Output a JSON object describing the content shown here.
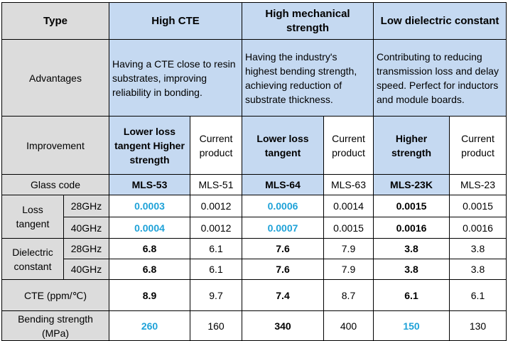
{
  "header": {
    "type": "Type",
    "high_cte": "High CTE",
    "high_mech": "High mechanical strength",
    "low_dielectric": "Low dielectric constant"
  },
  "advantages": {
    "label": "Advantages",
    "high_cte": "Having a CTE close to resin substrates, improving reliability in bonding.",
    "high_mech": "Having the industry's highest bending strength, achieving reduction of substrate thickness.",
    "low_dielectric": "Contributing to reducing transmission loss and delay speed. Perfect for inductors and module boards."
  },
  "improvement": {
    "label": "Improvement",
    "high_cte": "Lower loss tangent Higher strength",
    "high_mech": "Lower loss tangent",
    "low_dielectric": "Higher strength",
    "current": "Current product"
  },
  "glass_code": {
    "label": "Glass code",
    "codes": [
      "MLS-53",
      "MLS-51",
      "MLS-64",
      "MLS-63",
      "MLS-23K",
      "MLS-23"
    ]
  },
  "loss_tangent": {
    "label": "Loss tangent",
    "rows": [
      {
        "freq": "28GHz",
        "values": [
          "0.0003",
          "0.0012",
          "0.0006",
          "0.0014",
          "0.0015",
          "0.0015"
        ]
      },
      {
        "freq": "40GHz",
        "values": [
          "0.0004",
          "0.0012",
          "0.0007",
          "0.0015",
          "0.0016",
          "0.0016"
        ]
      }
    ]
  },
  "dielectric_constant": {
    "label": "Dielectric constant",
    "rows": [
      {
        "freq": "28GHz",
        "values": [
          "6.8",
          "6.1",
          "7.6",
          "7.9",
          "3.8",
          "3.8"
        ]
      },
      {
        "freq": "40GHz",
        "values": [
          "6.8",
          "6.1",
          "7.6",
          "7.9",
          "3.8",
          "3.8"
        ]
      }
    ]
  },
  "cte": {
    "label": "CTE (ppm/℃)",
    "values": [
      "8.9",
      "9.7",
      "7.4",
      "8.7",
      "6.1",
      "6.1"
    ]
  },
  "bending_strength": {
    "label": "Bending strength (MPa)",
    "values": [
      "260",
      "160",
      "340",
      "400",
      "150",
      "130"
    ]
  },
  "colors": {
    "label_bg": "#dcdcdc",
    "new_product_bg": "#c5d9f1",
    "highlight_text": "#1fa2d8"
  }
}
